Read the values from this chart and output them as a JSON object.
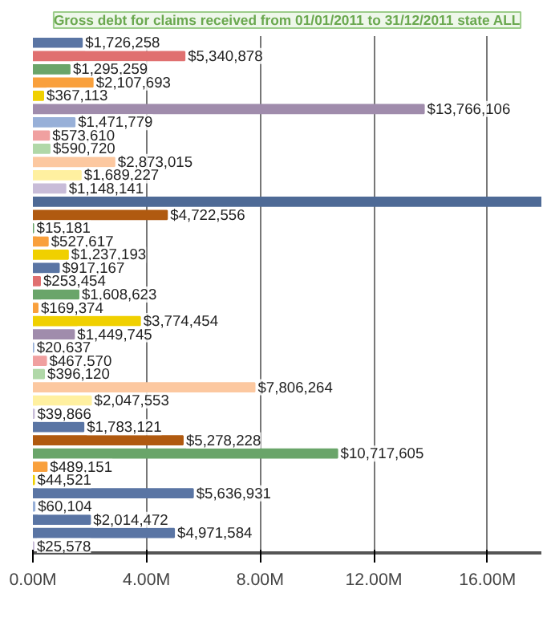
{
  "chart_data": {
    "type": "bar",
    "orientation": "horizontal",
    "title": "Gross debt for claims received from 01/01/2011 to 31/12/2011 state ALL",
    "categories": [
      null,
      null,
      null,
      null,
      null,
      null,
      null,
      null,
      null,
      null,
      null,
      null,
      null,
      null,
      null,
      null,
      null,
      null,
      null,
      null,
      null,
      null,
      null,
      null,
      null,
      null,
      null,
      null,
      null,
      null,
      null,
      null,
      null,
      null,
      null,
      null,
      null,
      null,
      null
    ],
    "values": [
      1726258,
      5340878,
      1295259,
      2107693,
      367113,
      13766106,
      1471779,
      573610,
      590720,
      2873015,
      1689227,
      1148141,
      17900000,
      4722556,
      15181,
      527617,
      1237193,
      917167,
      253454,
      1608623,
      169374,
      3774454,
      1449745,
      20637,
      467570,
      396120,
      7806264,
      2047553,
      39866,
      1783121,
      5278228,
      10717605,
      489151,
      44521,
      5636931,
      60104,
      2014472,
      4971584,
      25578
    ],
    "value_labels": [
      "$1,726,258",
      "$5,340,878",
      "$1,295,259",
      "$2,107,693",
      "$367,113",
      "$13,766,106",
      "$1,471,779",
      "$573,610",
      "$590,720",
      "$2,873,015",
      "$1,689,227",
      "$1,148,141",
      null,
      "$4,722,556",
      "$15,181",
      "$527,617",
      "$1,237,193",
      "$917,167",
      "$253,454",
      "$1,608,623",
      "$169,374",
      "$3,774,454",
      "$1,449,745",
      "$20,637",
      "$467,570",
      "$396,120",
      "$7,806,264",
      "$2,047,553",
      "$39,866",
      "$1,783,121",
      "$5,278,228",
      "$10,717,605",
      "$489,151",
      "$44,521",
      "$5,636,931",
      "$60,104",
      "$2,014,472",
      "$4,971,584",
      "$25,578"
    ],
    "colors": [
      "#5a75a4",
      "#e07070",
      "#6aa56a",
      "#f9a03c",
      "#f0d000",
      "#a08cac",
      "#98b0d8",
      "#f0a0a0",
      "#b0d8a8",
      "#fcc8a0",
      "#fff0a0",
      "#c8bcd8",
      "#4e6a96",
      "#b05a10",
      "#6aa56a",
      "#f9a03c",
      "#f0d000",
      "#5a75a4",
      "#e07070",
      "#6aa56a",
      "#f9a03c",
      "#f0d000",
      "#a08cac",
      "#98b0d8",
      "#f0a0a0",
      "#b0d8a8",
      "#fcc8a0",
      "#fff0a0",
      "#c8bcd8",
      "#5a75a4",
      "#b05a10",
      "#6aa56a",
      "#f9a03c",
      "#f0d000",
      "#5a75a4",
      "#98b0d8",
      "#5a75a4",
      "#5a75a4",
      "#c8bcd8"
    ],
    "xlim": [
      0,
      17900000
    ],
    "xticks": [
      {
        "value": 0,
        "label": "0.00M"
      },
      {
        "value": 4000000,
        "label": "4.00M"
      },
      {
        "value": 8000000,
        "label": "8.00M"
      },
      {
        "value": 12000000,
        "label": "12.00M"
      },
      {
        "value": 16000000,
        "label": "16.00M"
      }
    ],
    "grid": "x",
    "tick_labels": "x"
  }
}
